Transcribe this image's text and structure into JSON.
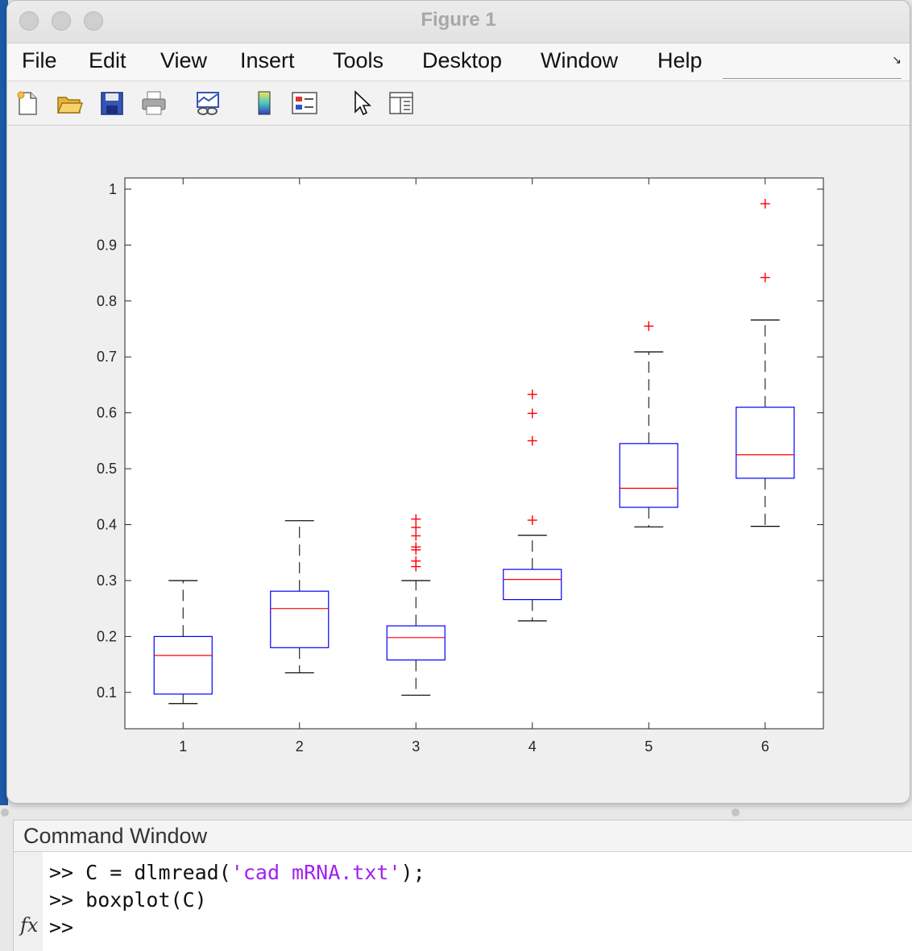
{
  "window": {
    "title": "Figure 1",
    "menu": [
      "File",
      "Edit",
      "View",
      "Insert",
      "Tools",
      "Desktop",
      "Window",
      "Help"
    ],
    "toolbar_icons": [
      "new-figure-icon",
      "open-file-icon",
      "save-icon",
      "print-icon",
      "link-plot-icon",
      "colorbar-icon",
      "legend-icon",
      "edit-plot-icon",
      "property-editor-icon"
    ]
  },
  "chart_data": {
    "type": "box",
    "x_ticks": [
      "1",
      "2",
      "3",
      "4",
      "5",
      "6"
    ],
    "y_ticks": [
      "0.1",
      "0.2",
      "0.3",
      "0.4",
      "0.5",
      "0.6",
      "0.7",
      "0.8",
      "0.9",
      "1"
    ],
    "ylim": [
      0.035,
      1.02
    ],
    "colors": {
      "box": "#0000ff",
      "median": "#ff0000",
      "whisker": "#000000",
      "outlier": "#ff0000"
    },
    "boxes": [
      {
        "category": "1",
        "whisker_low": 0.08,
        "q1": 0.097,
        "median": 0.166,
        "q3": 0.2,
        "whisker_high": 0.3,
        "outliers": []
      },
      {
        "category": "2",
        "whisker_low": 0.135,
        "q1": 0.18,
        "median": 0.25,
        "q3": 0.281,
        "whisker_high": 0.407,
        "outliers": []
      },
      {
        "category": "3",
        "whisker_low": 0.095,
        "q1": 0.158,
        "median": 0.198,
        "q3": 0.219,
        "whisker_high": 0.3,
        "outliers": [
          0.325,
          0.335,
          0.355,
          0.36,
          0.38,
          0.395,
          0.41
        ]
      },
      {
        "category": "4",
        "whisker_low": 0.228,
        "q1": 0.266,
        "median": 0.302,
        "q3": 0.32,
        "whisker_high": 0.381,
        "outliers": [
          0.408,
          0.55,
          0.599,
          0.633
        ]
      },
      {
        "category": "5",
        "whisker_low": 0.396,
        "q1": 0.431,
        "median": 0.465,
        "q3": 0.545,
        "whisker_high": 0.709,
        "outliers": [
          0.755
        ]
      },
      {
        "category": "6",
        "whisker_low": 0.397,
        "q1": 0.483,
        "median": 0.525,
        "q3": 0.61,
        "whisker_high": 0.766,
        "outliers": [
          0.842,
          0.974
        ]
      }
    ]
  },
  "command_window": {
    "title": "Command Window",
    "prompt": ">>",
    "lines": [
      {
        "code": "C = dlmread(",
        "string": "'cad mRNA.txt'",
        "tail": ");"
      },
      {
        "code": "boxplot(C)",
        "string": "",
        "tail": ""
      }
    ],
    "fx_label": "fx"
  }
}
